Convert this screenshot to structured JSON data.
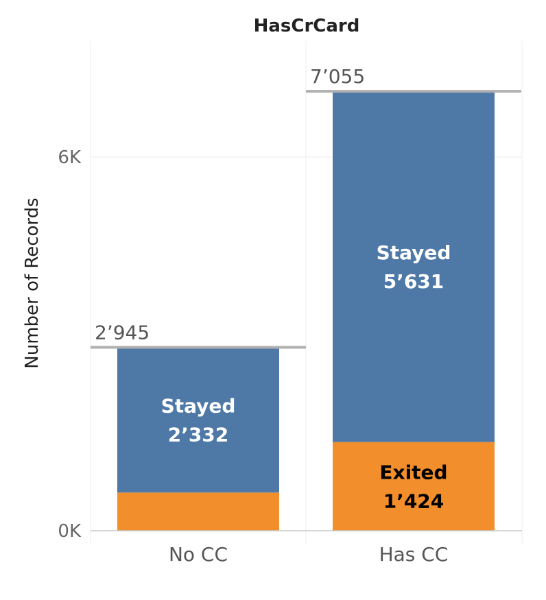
{
  "chart_data": {
    "type": "bar",
    "stacked": true,
    "title": "HasCrCard",
    "xlabel": "",
    "ylabel": "Number of Records",
    "ylim": [
      0,
      7500
    ],
    "y_ticks": [
      {
        "value": 0,
        "label": "0K"
      },
      {
        "value": 6000,
        "label": "6K"
      }
    ],
    "grid": true,
    "categories": [
      "No CC",
      "Has CC"
    ],
    "series": [
      {
        "name": "Exited",
        "color": "#f28e2b",
        "label_color": "#000000",
        "values": [
          613,
          1424
        ],
        "labels": [
          "",
          "Exited\n1’424"
        ]
      },
      {
        "name": "Stayed",
        "color": "#4e79a7",
        "label_color": "#ffffff",
        "values": [
          2332,
          5631
        ],
        "labels": [
          "Stayed\n2’332",
          "Stayed\n5’631"
        ]
      }
    ],
    "totals": [
      {
        "value": 2945,
        "label": "2’945"
      },
      {
        "value": 7055,
        "label": "7’055"
      }
    ],
    "colors": {
      "total_line": "#b0b0b0",
      "grid": "#ececec",
      "baseline": "#c8c8c8"
    }
  }
}
